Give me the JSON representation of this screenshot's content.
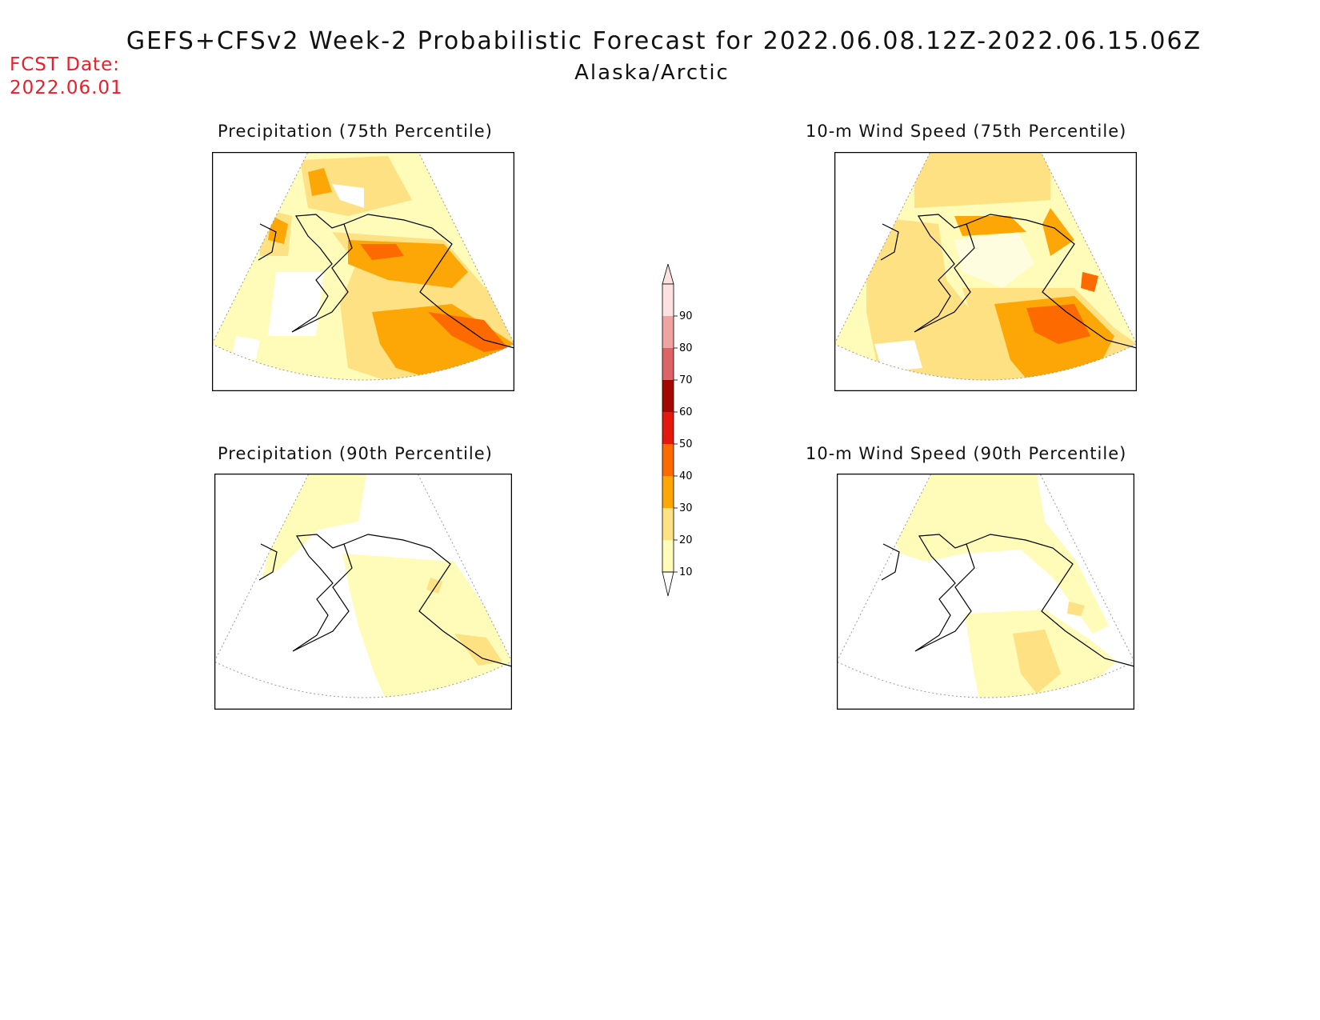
{
  "header": {
    "title": "GEFS+CFSv2 Week-2 Probabilistic Forecast for 2022.06.08.12Z-2022.06.15.06Z",
    "subtitle": "Alaska/Arctic",
    "fcst_label": "FCST Date:",
    "fcst_date": "2022.06.01"
  },
  "panels": [
    {
      "id": "precip-75",
      "title": "Precipitation (75th Percentile)"
    },
    {
      "id": "wind-75",
      "title": "10-m Wind Speed (75th Percentile)"
    },
    {
      "id": "precip-90",
      "title": "Precipitation (90th Percentile)"
    },
    {
      "id": "wind-90",
      "title": "10-m Wind Speed (90th Percentile)"
    }
  ],
  "colorbar": {
    "levels": [
      "10",
      "20",
      "30",
      "40",
      "50",
      "60",
      "70",
      "80",
      "90"
    ],
    "colors": [
      "#fffbb8",
      "#fde183",
      "#fca705",
      "#fd6a00",
      "#e31a0b",
      "#a20800",
      "#dc6466",
      "#f0a3a3",
      "#fde0e0"
    ]
  },
  "palette": {
    "c10": "#fffbb8",
    "c20": "#fde183",
    "c30": "#fca705",
    "c40": "#fd6a00",
    "title_red": "#e8202a"
  }
}
